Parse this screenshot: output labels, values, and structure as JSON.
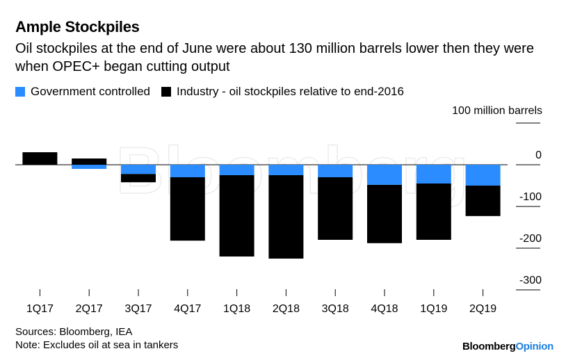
{
  "header": {
    "title": "Ample Stockpiles",
    "subtitle": "Oil stockpiles at the end of June were about 130 million barrels lower then they were when OPEC+ began cutting output"
  },
  "legend": {
    "items": [
      {
        "label": "Government controlled",
        "color": "#2b8cff"
      },
      {
        "label": "Industry - oil stockpiles relative to end-2016",
        "color": "#000000"
      }
    ]
  },
  "footer": {
    "sources": "Sources: Bloomberg, IEA",
    "note": "Note: Excludes oil at sea in tankers",
    "brand_main": "Bloomberg",
    "brand_accent": "Opinion"
  },
  "watermark": "Bloomberg",
  "chart_data": {
    "type": "bar",
    "stacked": true,
    "categories": [
      "1Q17",
      "2Q17",
      "3Q17",
      "4Q17",
      "1Q18",
      "2Q18",
      "3Q18",
      "4Q18",
      "1Q19",
      "2Q19"
    ],
    "series": [
      {
        "name": "Government controlled",
        "color": "#2b8cff",
        "values": [
          0,
          -10,
          -22,
          -30,
          -25,
          -25,
          -30,
          -48,
          -45,
          -50
        ]
      },
      {
        "name": "Industry - oil stockpiles relative to end-2016",
        "color": "#000000",
        "values": [
          30,
          15,
          -20,
          -152,
          -195,
          -200,
          -150,
          -140,
          -135,
          -73
        ]
      }
    ],
    "unit_label": "100 million barrels",
    "yticks": [
      0,
      -100,
      -200,
      -300
    ],
    "ytick_labels": [
      "0",
      "-100",
      "-200",
      "-300"
    ],
    "ylim": [
      -320,
      100
    ],
    "axis_position": "right",
    "grid": false
  }
}
